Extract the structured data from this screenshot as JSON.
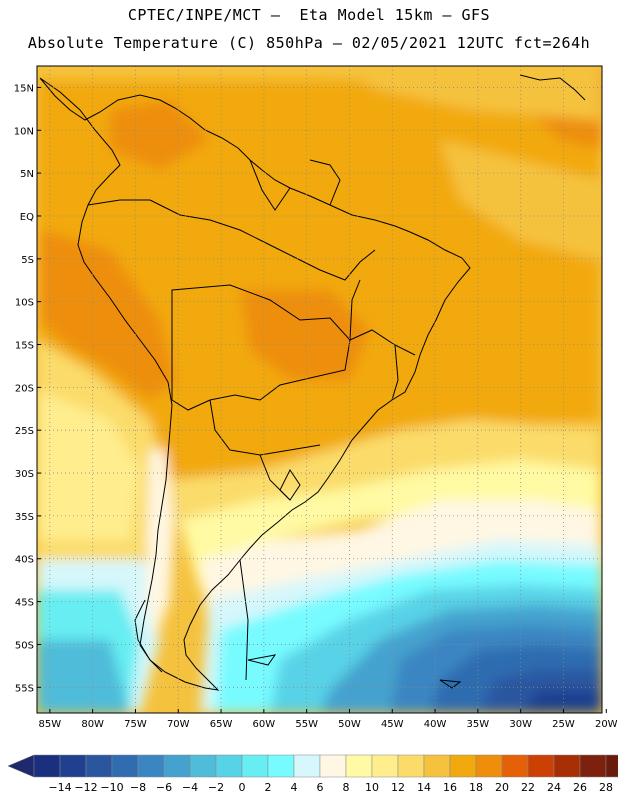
{
  "header": {
    "line1": "CPTEC/INPE/MCT –  Eta Model 15km – GFS",
    "line2": "Absolute Temperature (C) 850hPa – 02/05/2021 12UTC fct=264h"
  },
  "axes": {
    "lat_labels": [
      "15N",
      "10N",
      "5N",
      "EQ",
      "5S",
      "10S",
      "15S",
      "20S",
      "25S",
      "30S",
      "35S",
      "40S",
      "45S",
      "50S",
      "55S"
    ],
    "lon_labels": [
      "85W",
      "80W",
      "75W",
      "70W",
      "65W",
      "60W",
      "55W",
      "50W",
      "45W",
      "40W",
      "35W",
      "30W",
      "25W",
      "20W"
    ],
    "lat_range": [
      17.5,
      -58
    ],
    "lon_range": [
      -86.5,
      -20.5
    ],
    "grid": "dotted"
  },
  "colorbar": {
    "labels": [
      "-14",
      "-12",
      "-10",
      "-8",
      "-6",
      "-4",
      "-2",
      "0",
      "2",
      "4",
      "6",
      "8",
      "10",
      "12",
      "14",
      "16",
      "18",
      "20",
      "22",
      "24",
      "26",
      "28"
    ],
    "colors": [
      "#1a2f7e",
      "#1f3f8f",
      "#2a56a0",
      "#2f6cb0",
      "#3a86c2",
      "#45a2cf",
      "#4fbcd9",
      "#58d2e6",
      "#66eef2",
      "#77fbff",
      "#d6f7fb",
      "#fff7e3",
      "#fffaa3",
      "#ffed8e",
      "#fbdc6a",
      "#f5c23e",
      "#f2a90d",
      "#ee8e0a",
      "#e56107",
      "#cd4004",
      "#a82e05",
      "#7d200d",
      "#6a1b0c"
    ]
  }
}
